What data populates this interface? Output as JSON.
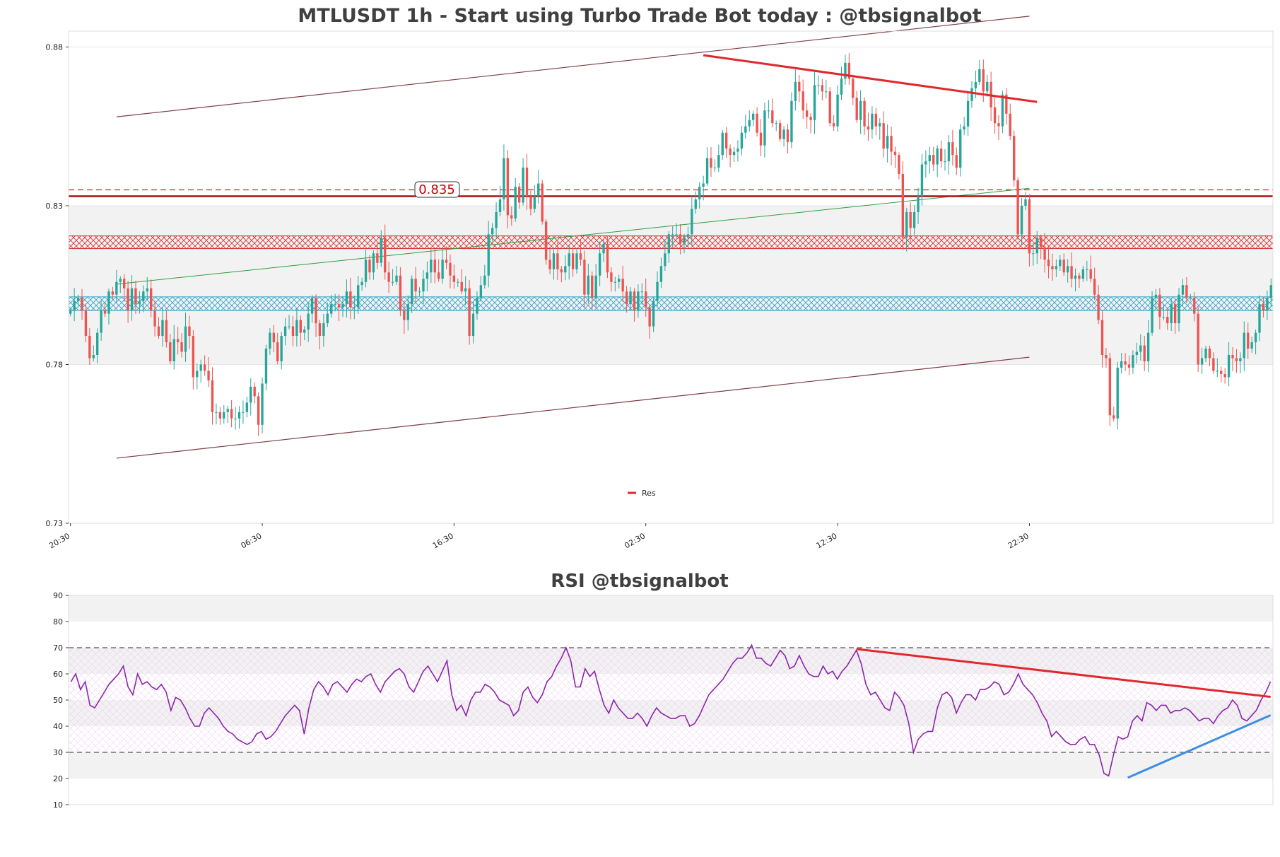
{
  "colors": {
    "up": "#26a69a",
    "down": "#ef5350",
    "channel": "#7a3b47",
    "trend_green": "#2e9e3e",
    "resistance": "#e0282e",
    "support_zone": "#2aa0c8",
    "rsi_line": "#8e24aa",
    "rsi_support": "#3d8fe0",
    "band_gray": "#f2f2f2"
  },
  "chart_data": [
    {
      "type": "candlestick",
      "title": "MTLUSDT 1h - Start using Turbo Trade Bot today : @tbsignalbot",
      "ylim": [
        0.73,
        0.885
      ],
      "y_ticks": [
        0.88,
        0.83,
        0.78,
        0.73
      ],
      "y_tick_labels": [
        "0.88",
        "0.83",
        "0.78",
        "0.73"
      ],
      "x_tick_labels": [
        "20:30",
        "06:30",
        "16:30",
        "02:30",
        "12:30",
        "22:30"
      ],
      "x_tick_index": [
        0,
        50,
        100,
        150,
        200,
        250
      ],
      "price_tag": "0.835",
      "legend": [
        {
          "label": "Res"
        }
      ],
      "legend_position": "bottom-center",
      "lines": {
        "channel_upper": [
          [
            12,
            0.858
          ],
          [
            250,
            0.8897
          ]
        ],
        "channel_lower": [
          [
            12,
            0.7505
          ],
          [
            250,
            0.7823
          ]
        ],
        "green_trend": [
          [
            12,
            0.8053
          ],
          [
            250,
            0.8355
          ]
        ],
        "resistance": [
          [
            165,
            0.8774
          ],
          [
            252,
            0.8627
          ]
        ],
        "dashed_level": 0.835,
        "solid_level": 0.833
      },
      "zones": {
        "gray_band": [
          0.78,
          0.83
        ],
        "red_zone": [
          0.8165,
          0.8205
        ],
        "blue_zone": [
          0.797,
          0.8013
        ]
      },
      "closes": [
        0.797,
        0.8,
        0.801,
        0.797,
        0.789,
        0.782,
        0.783,
        0.79,
        0.797,
        0.796,
        0.803,
        0.802,
        0.806,
        0.807,
        0.804,
        0.797,
        0.804,
        0.799,
        0.8,
        0.803,
        0.804,
        0.797,
        0.792,
        0.789,
        0.794,
        0.787,
        0.781,
        0.788,
        0.787,
        0.784,
        0.792,
        0.789,
        0.776,
        0.778,
        0.78,
        0.778,
        0.775,
        0.765,
        0.765,
        0.763,
        0.765,
        0.766,
        0.763,
        0.763,
        0.765,
        0.765,
        0.768,
        0.773,
        0.77,
        0.761,
        0.774,
        0.785,
        0.79,
        0.787,
        0.781,
        0.789,
        0.792,
        0.792,
        0.789,
        0.794,
        0.79,
        0.791,
        0.796,
        0.801,
        0.793,
        0.789,
        0.793,
        0.796,
        0.799,
        0.799,
        0.798,
        0.799,
        0.803,
        0.798,
        0.798,
        0.805,
        0.806,
        0.813,
        0.809,
        0.815,
        0.812,
        0.82,
        0.809,
        0.806,
        0.806,
        0.808,
        0.797,
        0.794,
        0.799,
        0.807,
        0.803,
        0.803,
        0.807,
        0.809,
        0.813,
        0.809,
        0.807,
        0.813,
        0.812,
        0.808,
        0.806,
        0.806,
        0.803,
        0.804,
        0.789,
        0.796,
        0.801,
        0.805,
        0.808,
        0.821,
        0.823,
        0.828,
        0.832,
        0.845,
        0.827,
        0.826,
        0.836,
        0.831,
        0.842,
        0.833,
        0.829,
        0.833,
        0.837,
        0.825,
        0.813,
        0.81,
        0.815,
        0.81,
        0.809,
        0.811,
        0.815,
        0.81,
        0.815,
        0.813,
        0.802,
        0.808,
        0.801,
        0.808,
        0.815,
        0.818,
        0.809,
        0.806,
        0.806,
        0.807,
        0.803,
        0.799,
        0.803,
        0.797,
        0.803,
        0.803,
        0.798,
        0.792,
        0.8,
        0.806,
        0.811,
        0.815,
        0.821,
        0.821,
        0.821,
        0.818,
        0.82,
        0.821,
        0.829,
        0.832,
        0.836,
        0.837,
        0.845,
        0.842,
        0.842,
        0.846,
        0.853,
        0.848,
        0.846,
        0.847,
        0.848,
        0.853,
        0.855,
        0.857,
        0.859,
        0.853,
        0.849,
        0.86,
        0.86,
        0.856,
        0.856,
        0.851,
        0.854,
        0.85,
        0.863,
        0.869,
        0.866,
        0.86,
        0.858,
        0.857,
        0.868,
        0.868,
        0.866,
        0.866,
        0.856,
        0.855,
        0.865,
        0.87,
        0.875,
        0.87,
        0.864,
        0.857,
        0.863,
        0.855,
        0.854,
        0.859,
        0.855,
        0.856,
        0.848,
        0.852,
        0.847,
        0.846,
        0.84,
        0.82,
        0.828,
        0.823,
        0.828,
        0.833,
        0.843,
        0.844,
        0.846,
        0.843,
        0.848,
        0.844,
        0.844,
        0.85,
        0.846,
        0.842,
        0.854,
        0.855,
        0.863,
        0.867,
        0.869,
        0.873,
        0.866,
        0.869,
        0.861,
        0.856,
        0.855,
        0.865,
        0.859,
        0.852,
        0.838,
        0.821,
        0.83,
        0.832,
        0.815,
        0.815,
        0.82,
        0.817,
        0.813,
        0.811,
        0.81,
        0.811,
        0.813,
        0.809,
        0.811,
        0.807,
        0.808,
        0.807,
        0.81,
        0.81,
        0.807,
        0.802,
        0.794,
        0.783,
        0.782,
        0.764,
        0.763,
        0.779,
        0.781,
        0.78,
        0.779,
        0.783,
        0.784,
        0.786,
        0.781,
        0.79,
        0.801,
        0.802,
        0.795,
        0.795,
        0.793,
        0.799,
        0.793,
        0.802,
        0.805,
        0.801,
        0.801,
        0.796,
        0.78,
        0.782,
        0.785,
        0.782,
        0.778,
        0.778,
        0.777,
        0.776,
        0.783,
        0.782,
        0.781,
        0.782,
        0.79,
        0.785,
        0.787,
        0.79,
        0.799,
        0.797,
        0.801,
        0.805
      ],
      "volatility": 0.004
    },
    {
      "type": "line",
      "title": "RSI @tbsignalbot",
      "ylim": [
        10,
        90
      ],
      "y_ticks": [
        90,
        80,
        70,
        60,
        50,
        40,
        30,
        20,
        10
      ],
      "y_tick_labels": [
        "90",
        "80",
        "70",
        "60",
        "50",
        "40",
        "30",
        "20",
        "10"
      ],
      "dashed_levels": [
        70,
        30
      ],
      "gray_bands": [
        [
          80,
          90
        ],
        [
          60,
          70
        ],
        [
          40,
          50
        ],
        [
          20,
          30
        ]
      ],
      "hatch_band": [
        30,
        70
      ],
      "resistance_line": [
        [
          165,
          69.5
        ],
        [
          252,
          51.2
        ]
      ],
      "support_line": [
        [
          222,
          20.3
        ],
        [
          252,
          44.2
        ]
      ],
      "values": [
        57,
        60,
        54,
        57,
        48,
        47,
        50,
        53,
        56,
        58,
        60,
        63,
        55,
        52,
        60,
        56,
        57,
        55,
        54,
        56,
        53,
        46,
        51,
        50,
        47,
        43,
        40,
        40,
        45,
        47,
        45,
        43,
        40,
        38,
        37,
        35,
        34,
        33,
        34,
        37,
        38,
        35,
        36,
        38,
        41,
        44,
        46,
        48,
        46,
        37,
        47,
        54,
        57,
        55,
        52,
        56,
        57,
        55,
        53,
        56,
        58,
        57,
        59,
        60,
        56,
        53,
        57,
        59,
        61,
        62,
        60,
        55,
        53,
        57,
        61,
        63,
        60,
        57,
        61,
        65,
        52,
        46,
        48,
        44,
        50,
        53,
        53,
        56,
        55,
        53,
        50,
        49,
        48,
        44,
        46,
        53,
        55,
        51,
        49,
        52,
        57,
        59,
        63,
        66,
        70,
        65,
        55,
        55,
        62,
        59,
        61,
        54,
        48,
        45,
        50,
        47,
        45,
        43,
        43,
        45,
        43,
        40,
        44,
        47,
        45,
        44,
        43,
        43,
        44,
        44,
        40,
        41,
        44,
        48,
        52,
        54,
        56,
        58,
        61,
        64,
        66,
        66,
        68,
        71,
        66,
        66,
        64,
        63,
        66,
        69,
        67,
        62,
        63,
        67,
        63,
        60,
        59,
        59,
        63,
        60,
        61,
        58,
        61,
        63,
        66,
        69,
        64,
        56,
        52,
        53,
        50,
        47,
        46,
        53,
        51,
        48,
        41,
        30,
        35,
        37,
        38,
        38,
        47,
        52,
        53,
        51,
        45,
        49,
        52,
        52,
        50,
        54,
        54,
        55,
        57,
        56,
        52,
        53,
        56,
        60,
        56,
        54,
        52,
        49,
        45,
        42,
        36,
        38,
        36,
        34,
        33,
        33,
        35,
        36,
        33,
        33,
        29,
        22,
        21,
        29,
        36,
        35,
        36,
        42,
        44,
        42,
        49,
        48,
        46,
        48,
        48,
        45,
        46,
        46,
        47,
        46,
        44,
        42,
        43,
        43,
        41,
        44,
        46,
        47,
        50,
        48,
        43,
        42,
        44,
        46,
        50,
        53,
        57
      ]
    }
  ]
}
